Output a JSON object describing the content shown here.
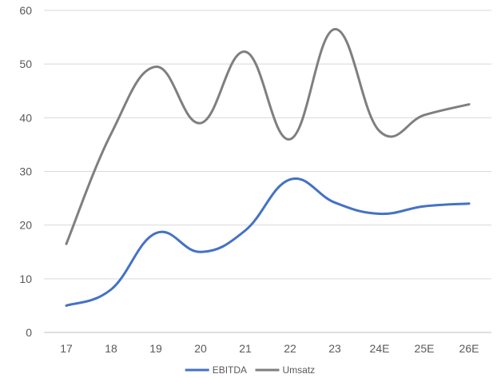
{
  "chart_data": {
    "type": "line",
    "categories": [
      "17",
      "18",
      "19",
      "20",
      "21",
      "22",
      "23",
      "24E",
      "25E",
      "26E"
    ],
    "series": [
      {
        "name": "EBITDA",
        "values": [
          5,
          8,
          18.5,
          15,
          19,
          28.5,
          24.2,
          22.1,
          23.5,
          24
        ],
        "color": "#4472c4"
      },
      {
        "name": "Umsatz",
        "values": [
          16.5,
          37,
          49.5,
          39,
          52.3,
          36,
          56.5,
          37.5,
          40.5,
          42.5
        ],
        "color": "#7f7f7f"
      }
    ],
    "yticks": [
      "0",
      "10",
      "20",
      "30",
      "40",
      "50",
      "60"
    ],
    "ylim": [
      0,
      60
    ],
    "grid": true,
    "smooth": true,
    "legend_position": "bottom-center",
    "title": "",
    "xlabel": "",
    "ylabel": ""
  }
}
